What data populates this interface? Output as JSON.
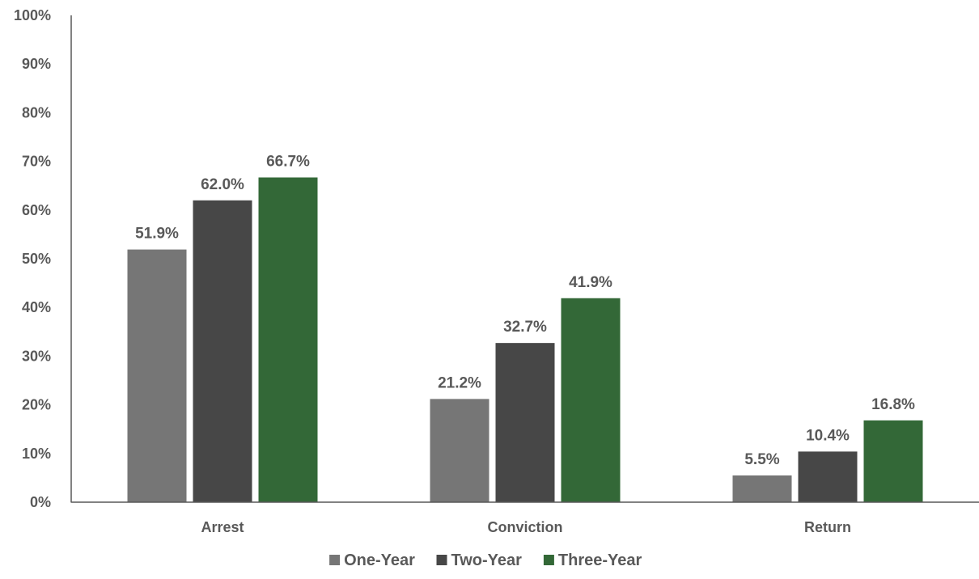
{
  "chart_data": {
    "type": "bar",
    "categories": [
      "Arrest",
      "Conviction",
      "Return"
    ],
    "series": [
      {
        "name": "One-Year",
        "values": [
          51.9,
          21.2,
          5.5
        ],
        "labels": [
          "51.9%",
          "21.2%",
          "5.5%"
        ],
        "color": "#767676"
      },
      {
        "name": "Two-Year",
        "values": [
          62.0,
          32.7,
          10.4
        ],
        "labels": [
          "62.0%",
          "32.7%",
          "10.4%"
        ],
        "color": "#474747"
      },
      {
        "name": "Three-Year",
        "values": [
          66.7,
          41.9,
          16.8
        ],
        "labels": [
          "66.7%",
          "41.9%",
          "16.8%"
        ],
        "color": "#336837"
      }
    ],
    "yticks": [
      "0%",
      "10%",
      "20%",
      "30%",
      "40%",
      "50%",
      "60%",
      "70%",
      "80%",
      "90%",
      "100%"
    ],
    "ylim": [
      0,
      100
    ],
    "grid": false,
    "legend_position": "bottom",
    "title": "",
    "xlabel": "",
    "ylabel": ""
  },
  "colors": {
    "axis": "#595959",
    "text": "#595959"
  }
}
